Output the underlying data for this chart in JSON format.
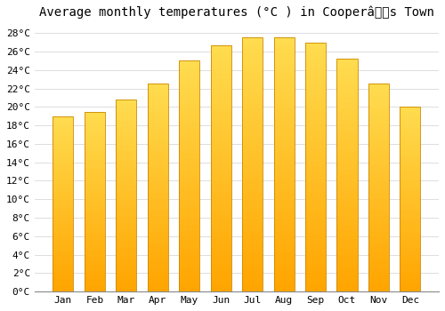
{
  "title": "Average monthly temperatures (°C ) in Cooperâs Town",
  "months": [
    "Jan",
    "Feb",
    "Mar",
    "Apr",
    "May",
    "Jun",
    "Jul",
    "Aug",
    "Sep",
    "Oct",
    "Nov",
    "Dec"
  ],
  "temperatures": [
    19.0,
    19.5,
    20.8,
    22.5,
    25.0,
    26.7,
    27.5,
    27.5,
    27.0,
    25.2,
    22.5,
    20.0
  ],
  "bar_color_top": "#FFD060",
  "bar_color_bottom": "#FFA500",
  "bar_edge_color": "#CC8800",
  "ylim": [
    0,
    29
  ],
  "yticks": [
    0,
    2,
    4,
    6,
    8,
    10,
    12,
    14,
    16,
    18,
    20,
    22,
    24,
    26,
    28
  ],
  "background_color": "#FFFFFF",
  "grid_color": "#dddddd",
  "title_fontsize": 10,
  "tick_fontsize": 8,
  "font_family": "monospace"
}
